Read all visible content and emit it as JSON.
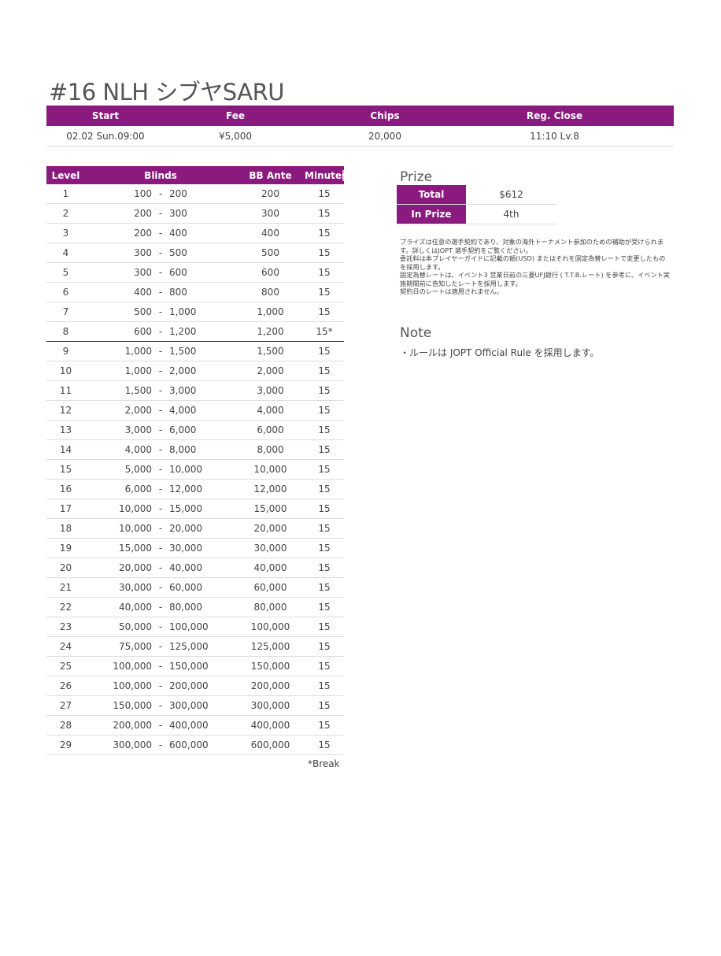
{
  "title": "#16 NLH シブヤSARU",
  "info": {
    "headers": [
      "Start",
      "Fee",
      "Chips",
      "Reg. Close"
    ],
    "values": [
      "02.02 Sun.09:00",
      "¥5,000",
      "20,000",
      "11:10 Lv.8"
    ]
  },
  "colors": {
    "accent": "#8a1a7e"
  },
  "blinds": {
    "headers": [
      "Level",
      "Blinds",
      "BB Ante",
      "Minutes"
    ],
    "rows": [
      [
        "1",
        "100",
        "200",
        "200",
        "15"
      ],
      [
        "2",
        "200",
        "300",
        "300",
        "15"
      ],
      [
        "3",
        "200",
        "400",
        "400",
        "15"
      ],
      [
        "4",
        "300",
        "500",
        "500",
        "15"
      ],
      [
        "5",
        "300",
        "600",
        "600",
        "15"
      ],
      [
        "6",
        "400",
        "800",
        "800",
        "15"
      ],
      [
        "7",
        "500",
        "1,000",
        "1,000",
        "15"
      ],
      [
        "8",
        "600",
        "1,200",
        "1,200",
        "15*"
      ],
      [
        "9",
        "1,000",
        "1,500",
        "1,500",
        "15"
      ],
      [
        "10",
        "1,000",
        "2,000",
        "2,000",
        "15"
      ],
      [
        "11",
        "1,500",
        "3,000",
        "3,000",
        "15"
      ],
      [
        "12",
        "2,000",
        "4,000",
        "4,000",
        "15"
      ],
      [
        "13",
        "3,000",
        "6,000",
        "6,000",
        "15"
      ],
      [
        "14",
        "4,000",
        "8,000",
        "8,000",
        "15"
      ],
      [
        "15",
        "5,000",
        "10,000",
        "10,000",
        "15"
      ],
      [
        "16",
        "6,000",
        "12,000",
        "12,000",
        "15"
      ],
      [
        "17",
        "10,000",
        "15,000",
        "15,000",
        "15"
      ],
      [
        "18",
        "10,000",
        "20,000",
        "20,000",
        "15"
      ],
      [
        "19",
        "15,000",
        "30,000",
        "30,000",
        "15"
      ],
      [
        "20",
        "20,000",
        "40,000",
        "40,000",
        "15"
      ],
      [
        "21",
        "30,000",
        "60,000",
        "60,000",
        "15"
      ],
      [
        "22",
        "40,000",
        "80,000",
        "80,000",
        "15"
      ],
      [
        "23",
        "50,000",
        "100,000",
        "100,000",
        "15"
      ],
      [
        "24",
        "75,000",
        "125,000",
        "125,000",
        "15"
      ],
      [
        "25",
        "100,000",
        "150,000",
        "150,000",
        "15"
      ],
      [
        "26",
        "100,000",
        "200,000",
        "200,000",
        "15"
      ],
      [
        "27",
        "150,000",
        "300,000",
        "300,000",
        "15"
      ],
      [
        "28",
        "200,000",
        "400,000",
        "400,000",
        "15"
      ],
      [
        "29",
        "300,000",
        "600,000",
        "600,000",
        "15"
      ]
    ],
    "separator": "-",
    "break_note": "*Break"
  },
  "prize": {
    "heading": "Prize",
    "rows": [
      {
        "label": "Total",
        "value": "$612"
      },
      {
        "label": "In Prize",
        "value": "4th"
      }
    ],
    "notes": [
      "プライズは任意の選手契約であり、対象の海外トーナメント参加のための補助が受けられます。詳しくはJOPT 選手契約をご覧ください。",
      "委託料は本プレイヤーガイドに記載の額(USD) またはそれを固定為替レートで変更したものを採用します。",
      "固定為替レートは、イベント3 営業日前の三菱UFJ銀行 ( T.T.B.レート) を参考に、イベント実施期間前に告知したレートを採用します。",
      "契約日のレートは適用されません。"
    ]
  },
  "note": {
    "heading": "Note",
    "text": "・ルールは JOPT Official Rule を採用します。"
  }
}
